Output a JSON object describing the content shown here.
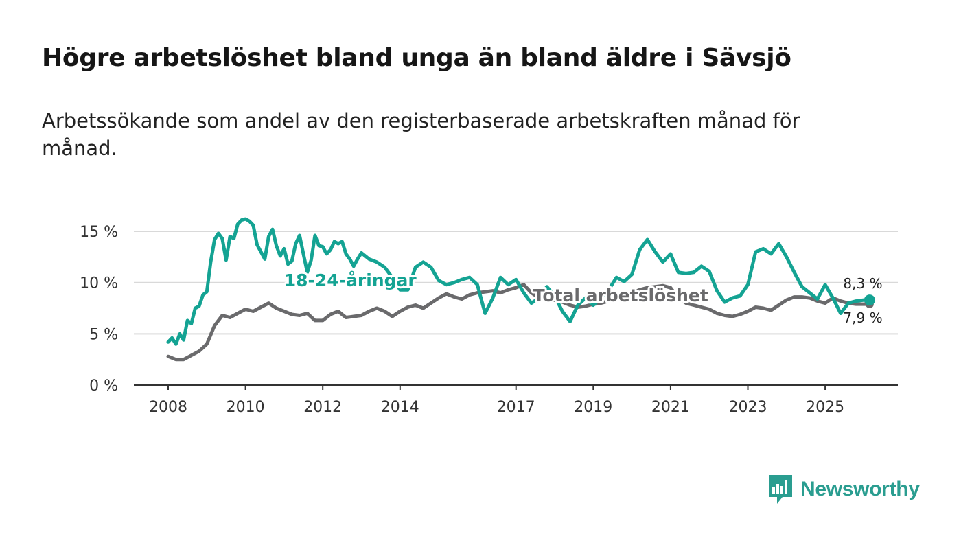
{
  "title": "Högre arbetslöshet bland unga än bland äldre i Sävsjö",
  "subtitle": "Arbetssökande som andel av den registerbaserade arbetskraften månad för månad.",
  "brand": {
    "name": "Newsworthy",
    "icon": "newsworthy-logo-icon"
  },
  "colors": {
    "youth": "#14a393",
    "total": "#6a6a6c",
    "grid": "#d9d9d9",
    "axis": "#333333"
  },
  "chart_data": {
    "type": "line",
    "title": "Högre arbetslöshet bland unga än bland äldre i Sävsjö",
    "xlabel": "",
    "ylabel": "",
    "ylim": [
      0,
      16.5
    ],
    "xlim": [
      2007.9,
      2026.6
    ],
    "y_ticks": [
      0,
      5,
      10,
      15
    ],
    "y_tick_labels": [
      "0 %",
      "5 %",
      "10 %",
      "15 %"
    ],
    "x_ticks": [
      2008,
      2010,
      2012,
      2014,
      2017,
      2019,
      2021,
      2023,
      2025
    ],
    "x_tick_labels": [
      "2008",
      "2010",
      "2012",
      "2014",
      "2017",
      "2019",
      "2021",
      "2023",
      "2025"
    ],
    "grid": true,
    "series": [
      {
        "name": "18-24-åringar",
        "label": "18-24-åringar",
        "end_label": "8,3 %",
        "color": "#14a393",
        "x": [
          2008.0,
          2008.1,
          2008.2,
          2008.3,
          2008.4,
          2008.5,
          2008.6,
          2008.7,
          2008.8,
          2008.9,
          2009.0,
          2009.1,
          2009.2,
          2009.3,
          2009.4,
          2009.5,
          2009.6,
          2009.7,
          2009.8,
          2009.9,
          2010.0,
          2010.1,
          2010.2,
          2010.3,
          2010.4,
          2010.5,
          2010.6,
          2010.7,
          2010.8,
          2010.9,
          2011.0,
          2011.1,
          2011.2,
          2011.3,
          2011.4,
          2011.5,
          2011.6,
          2011.7,
          2011.8,
          2011.9,
          2012.0,
          2012.1,
          2012.2,
          2012.3,
          2012.4,
          2012.5,
          2012.6,
          2012.7,
          2012.8,
          2012.9,
          2013.0,
          2013.2,
          2013.4,
          2013.6,
          2013.8,
          2014.0,
          2014.2,
          2014.4,
          2014.6,
          2014.8,
          2015.0,
          2015.2,
          2015.4,
          2015.6,
          2015.8,
          2016.0,
          2016.2,
          2016.4,
          2016.6,
          2016.8,
          2017.0,
          2017.2,
          2017.4,
          2017.6,
          2017.8,
          2018.0,
          2018.2,
          2018.4,
          2018.6,
          2018.8,
          2019.0,
          2019.2,
          2019.4,
          2019.6,
          2019.8,
          2020.0,
          2020.2,
          2020.4,
          2020.6,
          2020.8,
          2021.0,
          2021.2,
          2021.4,
          2021.6,
          2021.8,
          2022.0,
          2022.2,
          2022.4,
          2022.6,
          2022.8,
          2023.0,
          2023.2,
          2023.4,
          2023.6,
          2023.8,
          2024.0,
          2024.2,
          2024.4,
          2024.6,
          2024.8,
          2025.0,
          2025.2,
          2025.4,
          2025.6,
          2025.8,
          2026.0,
          2026.15
        ],
        "values": [
          4.2,
          4.6,
          4.0,
          5.0,
          4.4,
          6.3,
          6.0,
          7.5,
          7.7,
          8.8,
          9.1,
          12.0,
          14.2,
          14.8,
          14.3,
          12.2,
          14.5,
          14.3,
          15.7,
          16.1,
          16.2,
          16.0,
          15.6,
          13.7,
          13.0,
          12.3,
          14.5,
          15.2,
          13.6,
          12.6,
          13.3,
          11.8,
          12.1,
          13.8,
          14.6,
          12.8,
          11.0,
          12.2,
          14.6,
          13.6,
          13.5,
          12.8,
          13.2,
          14.0,
          13.8,
          14.0,
          12.8,
          12.3,
          11.6,
          12.3,
          12.9,
          12.3,
          12.0,
          11.5,
          10.5,
          9.3,
          9.3,
          11.5,
          12.0,
          11.5,
          10.2,
          9.8,
          10.0,
          10.3,
          10.5,
          9.8,
          7.0,
          8.5,
          10.5,
          9.8,
          10.3,
          9.0,
          8.0,
          8.5,
          9.6,
          8.7,
          7.2,
          6.2,
          7.8,
          8.5,
          7.8,
          8.5,
          9.3,
          10.5,
          10.1,
          10.8,
          13.2,
          14.2,
          13.0,
          12.0,
          12.8,
          11.0,
          10.9,
          11.0,
          11.6,
          11.1,
          9.2,
          8.1,
          8.5,
          8.7,
          9.8,
          13.0,
          13.3,
          12.8,
          13.8,
          12.5,
          11.0,
          9.6,
          9.0,
          8.4,
          9.8,
          8.5,
          7.0,
          8.0,
          8.2,
          8.3,
          8.3
        ],
        "x_label_at": 2012.8,
        "y_label_at": 10.1
      },
      {
        "name": "Total arbetslöshet",
        "label": "Total arbetslöshet",
        "end_label": "7,9 %",
        "color": "#6a6a6c",
        "x": [
          2008.0,
          2008.2,
          2008.4,
          2008.6,
          2008.8,
          2009.0,
          2009.2,
          2009.4,
          2009.6,
          2009.8,
          2010.0,
          2010.2,
          2010.4,
          2010.6,
          2010.8,
          2011.0,
          2011.2,
          2011.4,
          2011.6,
          2011.8,
          2012.0,
          2012.2,
          2012.4,
          2012.6,
          2012.8,
          2013.0,
          2013.2,
          2013.4,
          2013.6,
          2013.8,
          2014.0,
          2014.2,
          2014.4,
          2014.6,
          2014.8,
          2015.0,
          2015.2,
          2015.4,
          2015.6,
          2015.8,
          2016.0,
          2016.2,
          2016.4,
          2016.6,
          2016.8,
          2017.0,
          2017.2,
          2017.4,
          2017.6,
          2017.8,
          2018.0,
          2018.2,
          2018.4,
          2018.6,
          2018.8,
          2019.0,
          2019.2,
          2019.4,
          2019.6,
          2019.8,
          2020.0,
          2020.2,
          2020.4,
          2020.6,
          2020.8,
          2021.0,
          2021.2,
          2021.4,
          2021.6,
          2021.8,
          2022.0,
          2022.2,
          2022.4,
          2022.6,
          2022.8,
          2023.0,
          2023.2,
          2023.4,
          2023.6,
          2023.8,
          2024.0,
          2024.2,
          2024.4,
          2024.6,
          2024.8,
          2025.0,
          2025.2,
          2025.4,
          2025.6,
          2025.8,
          2026.0,
          2026.15
        ],
        "values": [
          2.8,
          2.5,
          2.5,
          2.9,
          3.3,
          4.0,
          5.8,
          6.8,
          6.6,
          7.0,
          7.4,
          7.2,
          7.6,
          8.0,
          7.5,
          7.2,
          6.9,
          6.8,
          7.0,
          6.3,
          6.3,
          6.9,
          7.2,
          6.6,
          6.7,
          6.8,
          7.2,
          7.5,
          7.2,
          6.7,
          7.2,
          7.6,
          7.8,
          7.5,
          8.0,
          8.5,
          8.9,
          8.6,
          8.4,
          8.8,
          9.0,
          9.1,
          9.2,
          9.0,
          9.3,
          9.5,
          9.8,
          9.0,
          8.5,
          8.2,
          8.3,
          8.1,
          7.8,
          7.6,
          7.7,
          7.9,
          8.0,
          8.2,
          8.3,
          8.6,
          9.0,
          9.3,
          9.5,
          9.6,
          9.7,
          9.5,
          8.5,
          8.0,
          7.8,
          7.6,
          7.4,
          7.0,
          6.8,
          6.7,
          6.9,
          7.2,
          7.6,
          7.5,
          7.3,
          7.8,
          8.3,
          8.6,
          8.6,
          8.5,
          8.2,
          8.0,
          8.5,
          8.2,
          8.0,
          7.9,
          7.9,
          7.9
        ],
        "x_label_at": 2017.4,
        "y_label_at": 8.7
      }
    ]
  }
}
